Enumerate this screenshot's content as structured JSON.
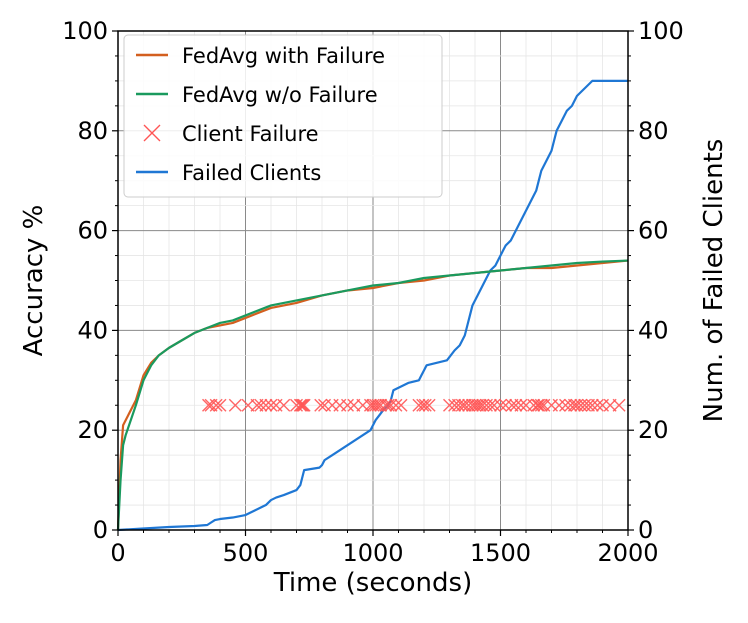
{
  "chart_data": {
    "type": "line",
    "title": "",
    "xlabel": "Time (seconds)",
    "ylabel": "Accuracy %",
    "y2label": "Num. of Failed Clients",
    "xlim": [
      0,
      2000
    ],
    "ylim": [
      0,
      100
    ],
    "y2lim": [
      0,
      100
    ],
    "xticks": [
      "0",
      "500",
      "1000",
      "1500",
      "2000"
    ],
    "yticks": [
      "0",
      "20",
      "40",
      "60",
      "80",
      "100"
    ],
    "y2ticks": [
      "0",
      "20",
      "40",
      "60",
      "80",
      "100"
    ],
    "grid": "major and minor",
    "legend_position": "top-left",
    "colors": {
      "fedavg_with_failure": "#d35f1f",
      "fedavg_without_failure": "#1a9a5e",
      "client_failure": "#ff5555",
      "failed_clients": "#1f77d4"
    },
    "series": [
      {
        "name": "FedAvg with Failure",
        "axis": "left",
        "x": [
          0,
          10,
          20,
          30,
          50,
          70,
          100,
          130,
          160,
          200,
          250,
          300,
          350,
          400,
          450,
          500,
          600,
          700,
          800,
          900,
          1000,
          1100,
          1200,
          1300,
          1400,
          1500,
          1600,
          1700,
          1800,
          1900,
          2000
        ],
        "y": [
          0,
          14,
          21,
          22,
          24,
          26,
          31,
          33.5,
          35,
          36.5,
          38,
          39.5,
          40.5,
          41,
          41.5,
          42.5,
          44.5,
          45.5,
          47,
          48,
          48.5,
          49.5,
          50,
          51,
          51.5,
          52,
          52.5,
          52.5,
          53,
          53.5,
          54
        ]
      },
      {
        "name": "FedAvg w/o Failure",
        "axis": "left",
        "x": [
          0,
          10,
          20,
          30,
          50,
          70,
          100,
          130,
          160,
          200,
          250,
          300,
          350,
          400,
          450,
          500,
          600,
          700,
          800,
          900,
          1000,
          1100,
          1200,
          1300,
          1400,
          1500,
          1600,
          1700,
          1800,
          1900,
          2000
        ],
        "y": [
          0,
          10,
          17,
          19,
          22,
          25,
          30,
          33,
          35,
          36.5,
          38,
          39.5,
          40.5,
          41.5,
          42,
          43,
          45,
          46,
          47,
          48,
          49,
          49.5,
          50.5,
          51,
          51.5,
          52,
          52.5,
          53,
          53.5,
          53.8,
          54
        ]
      },
      {
        "name": "Client Failure",
        "axis": "left",
        "marker": "x",
        "x": [
          355,
          365,
          385,
          400,
          460,
          510,
          545,
          560,
          580,
          600,
          620,
          650,
          700,
          715,
          720,
          725,
          730,
          795,
          810,
          840,
          870,
          900,
          925,
          960,
          990,
          1000,
          1010,
          1020,
          1030,
          1050,
          1060,
          1070,
          1090,
          1110,
          1180,
          1195,
          1205,
          1220,
          1300,
          1320,
          1335,
          1350,
          1360,
          1375,
          1390,
          1400,
          1410,
          1420,
          1430,
          1445,
          1460,
          1475,
          1500,
          1520,
          1545,
          1560,
          1580,
          1600,
          1630,
          1645,
          1650,
          1660,
          1670,
          1700,
          1730,
          1755,
          1775,
          1790,
          1800,
          1815,
          1830,
          1845,
          1860,
          1880,
          1900,
          1930,
          1965
        ],
        "y": [
          25,
          25,
          25,
          25,
          25,
          25,
          25,
          25,
          25,
          25,
          25,
          25,
          25,
          25,
          25,
          25,
          25,
          25,
          25,
          25,
          25,
          25,
          25,
          25,
          25,
          25,
          25,
          25,
          25,
          25,
          25,
          25,
          25,
          25,
          25,
          25,
          25,
          25,
          25,
          25,
          25,
          25,
          25,
          25,
          25,
          25,
          25,
          25,
          25,
          25,
          25,
          25,
          25,
          25,
          25,
          25,
          25,
          25,
          25,
          25,
          25,
          25,
          25,
          25,
          25,
          25,
          25,
          25,
          25,
          25,
          25,
          25,
          25,
          25,
          25,
          25,
          25
        ]
      },
      {
        "name": "Failed Clients",
        "axis": "right",
        "x": [
          0,
          100,
          200,
          300,
          350,
          365,
          380,
          400,
          450,
          500,
          520,
          540,
          560,
          580,
          600,
          620,
          650,
          700,
          715,
          720,
          730,
          790,
          800,
          810,
          840,
          870,
          900,
          930,
          960,
          990,
          1000,
          1010,
          1040,
          1060,
          1070,
          1080,
          1100,
          1140,
          1180,
          1190,
          1200,
          1210,
          1250,
          1290,
          1320,
          1340,
          1360,
          1370,
          1380,
          1390,
          1400,
          1410,
          1420,
          1430,
          1440,
          1450,
          1460,
          1470,
          1480,
          1490,
          1500,
          1510,
          1520,
          1540,
          1560,
          1580,
          1600,
          1620,
          1640,
          1650,
          1660,
          1680,
          1700,
          1710,
          1720,
          1740,
          1760,
          1780,
          1790,
          1800,
          1820,
          1840,
          1860,
          1880,
          1900,
          1920,
          1940,
          1950,
          1960,
          2000
        ],
        "y": [
          0,
          0.3,
          0.6,
          0.8,
          1,
          1.5,
          2,
          2.2,
          2.5,
          3,
          3.5,
          4,
          4.5,
          5,
          6,
          6.5,
          7,
          8,
          9,
          10,
          12,
          12.5,
          13,
          14,
          15,
          16,
          17,
          18,
          19,
          20,
          21,
          22,
          24,
          25,
          26,
          28,
          28.5,
          29.5,
          30,
          31,
          32,
          33,
          33.5,
          34,
          36,
          37,
          39,
          41,
          43,
          45,
          46,
          47,
          48,
          49,
          50,
          51,
          52,
          52.5,
          53,
          54,
          55,
          56,
          57,
          58,
          60,
          62,
          64,
          66,
          68,
          70,
          72,
          74,
          76,
          78,
          80,
          82,
          84,
          85,
          86,
          87,
          88,
          89,
          90,
          90,
          90,
          90,
          90,
          90,
          90,
          90
        ]
      }
    ]
  }
}
